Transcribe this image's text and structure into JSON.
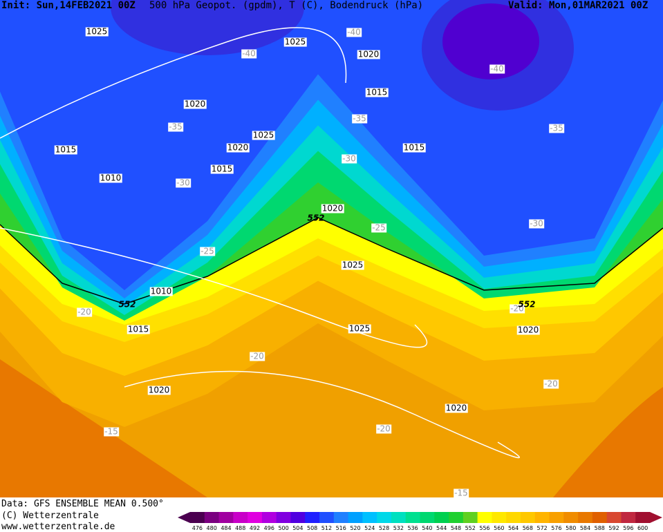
{
  "header": {
    "init": "Init: Sun,14FEB2021 00Z",
    "title": "500 hPa Geopot. (gpdm), T (C), Bodendruck (hPa)",
    "valid": "Valid: Mon,01MAR2021 00Z"
  },
  "isobar_labels": [
    "1025",
    "1025",
    "1020",
    "1020",
    "1015",
    "1025",
    "1020",
    "1015",
    "1015",
    "1015",
    "1010",
    "1020",
    "1025",
    "1010",
    "1015",
    "1025",
    "1020",
    "1020",
    "1020"
  ],
  "temperature_labels": [
    "-40",
    "-40",
    "-40",
    "-35",
    "-35",
    "-35",
    "-30",
    "-30",
    "-30",
    "-25",
    "-25",
    "-20",
    "-20",
    "-20",
    "-20",
    "-20",
    "-15",
    "-15"
  ],
  "contour_552_labels": [
    "552",
    "552",
    "552"
  ],
  "footer": {
    "data": "Data: GFS ENSEMBLE MEAN 0.500°",
    "copyright": "(C) Wetterzentrale",
    "url": "www.wetterzentrale.de"
  },
  "colorbar": {
    "ticks": [
      476,
      480,
      484,
      488,
      492,
      496,
      500,
      504,
      508,
      512,
      516,
      520,
      524,
      528,
      532,
      536,
      540,
      544,
      548,
      552,
      556,
      560,
      564,
      568,
      572,
      576,
      580,
      584,
      588,
      592,
      596,
      600
    ],
    "colors": [
      "#4b0050",
      "#7a0080",
      "#a000a0",
      "#c800c8",
      "#e000e0",
      "#b000e0",
      "#8000e0",
      "#5000e0",
      "#2020ff",
      "#2050ff",
      "#2080ff",
      "#00a0ff",
      "#00c0ff",
      "#00d8e8",
      "#00e0c0",
      "#00e090",
      "#00d870",
      "#00d050",
      "#20d030",
      "#60d020",
      "#ffff00",
      "#ffe800",
      "#ffd800",
      "#ffc800",
      "#ffb400",
      "#f8a000",
      "#f08c00",
      "#e87800",
      "#e06000",
      "#d84830",
      "#c02840",
      "#a01030"
    ]
  }
}
